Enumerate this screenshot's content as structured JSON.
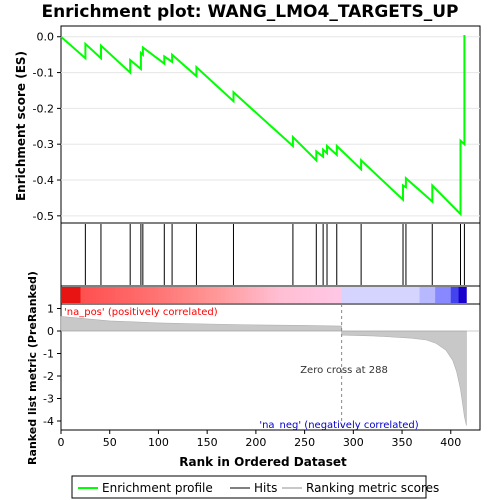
{
  "chart_data": {
    "type": "line",
    "title": "Enrichment plot: WANG_LMO4_TARGETS_UP",
    "panels": {
      "enrichment": {
        "ylabel": "Enrichment score (ES)",
        "ylim": [
          -0.52,
          0.03
        ],
        "yticks": [
          "0.0",
          "-0.1",
          "-0.2",
          "-0.3",
          "-0.4",
          "-0.5"
        ],
        "ytick_values": [
          0.0,
          -0.1,
          -0.2,
          -0.3,
          -0.4,
          -0.5
        ],
        "series": [
          {
            "name": "Enrichment profile",
            "color": "#00ff00",
            "x": [
              0,
              25,
              25,
              41,
              41,
              71,
              71,
              82,
              82,
              84,
              84,
              106,
              106,
              114,
              114,
              139,
              139,
              177,
              177,
              238,
              238,
              262,
              262,
              269,
              269,
              273,
              273,
              283,
              283,
              308,
              308,
              351,
              351,
              354,
              354,
              381,
              381,
              410,
              410,
              414,
              414
            ],
            "y": [
              0.0,
              -0.06,
              -0.02,
              -0.06,
              -0.025,
              -0.1,
              -0.065,
              -0.09,
              -0.045,
              -0.05,
              -0.03,
              -0.075,
              -0.055,
              -0.07,
              -0.05,
              -0.11,
              -0.085,
              -0.18,
              -0.155,
              -0.305,
              -0.28,
              -0.345,
              -0.32,
              -0.335,
              -0.315,
              -0.325,
              -0.305,
              -0.33,
              -0.305,
              -0.37,
              -0.345,
              -0.455,
              -0.415,
              -0.42,
              -0.395,
              -0.46,
              -0.415,
              -0.495,
              -0.29,
              -0.3,
              0.005
            ]
          }
        ]
      },
      "hits": {
        "name": "Hits",
        "positions": [
          25,
          41,
          71,
          82,
          84,
          106,
          114,
          139,
          177,
          238,
          262,
          269,
          273,
          283,
          308,
          351,
          354,
          381,
          410,
          414
        ]
      },
      "ranked": {
        "ylabel": "Ranked list metric (PreRanked)",
        "xlabel": "Rank in Ordered Dataset",
        "xlim": [
          0,
          430
        ],
        "ylim": [
          -4.4,
          1.2
        ],
        "xticks": [
          "0",
          "50",
          "100",
          "150",
          "200",
          "250",
          "300",
          "350",
          "400"
        ],
        "xtick_values": [
          0,
          50,
          100,
          150,
          200,
          250,
          300,
          350,
          400
        ],
        "yticks": [
          "1",
          "0",
          "-1",
          "-2",
          "-3",
          "-4"
        ],
        "ytick_values": [
          1,
          0,
          -1,
          -2,
          -3,
          -4
        ],
        "metric_x": [
          0,
          50,
          100,
          150,
          200,
          250,
          288,
          288,
          320,
          360,
          375,
          385,
          395,
          402,
          406,
          408,
          410,
          412,
          414,
          416
        ],
        "metric_y": [
          0.65,
          0.45,
          0.36,
          0.31,
          0.27,
          0.25,
          0.22,
          -0.18,
          -0.22,
          -0.32,
          -0.4,
          -0.55,
          -0.85,
          -1.3,
          -1.8,
          -2.2,
          -2.6,
          -3.2,
          -3.8,
          -4.2
        ],
        "zero_cross": 288,
        "annotations": {
          "pos": "'na_pos' (positively correlated)",
          "neg": "'na_neg' (negatively correlated)",
          "zero": "Zero cross at 288"
        }
      }
    },
    "total_ranks": 416,
    "colors": {
      "profile": "#00ff00",
      "pos_label": "#ff0000",
      "neg_label": "#0000cc",
      "metric_fill": "#c8c8c8"
    },
    "legend": {
      "placement": "bottom",
      "items": [
        "Enrichment profile",
        "Hits",
        "Ranking metric scores"
      ]
    }
  }
}
